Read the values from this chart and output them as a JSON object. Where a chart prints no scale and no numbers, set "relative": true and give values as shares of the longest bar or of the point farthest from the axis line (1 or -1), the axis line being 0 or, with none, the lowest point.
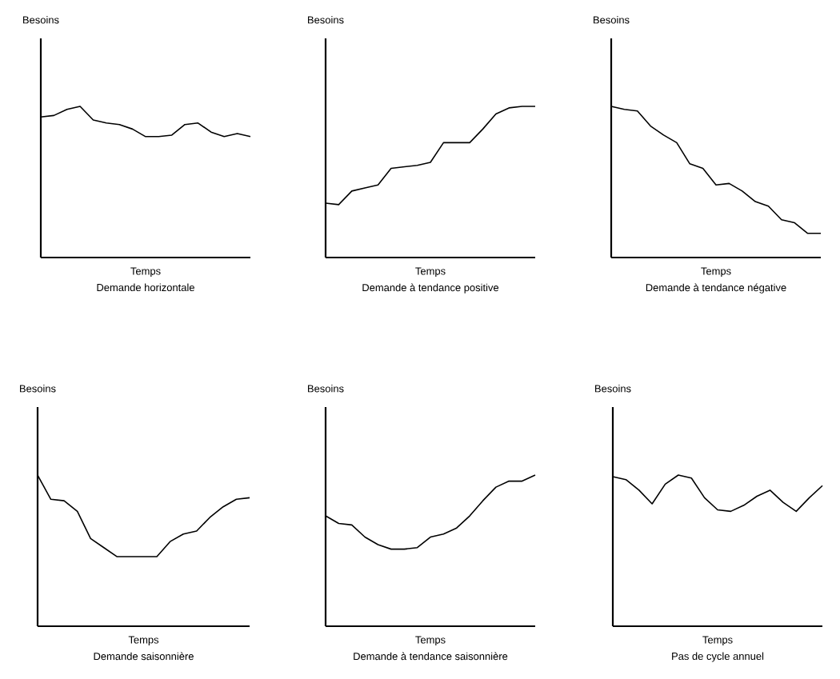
{
  "chart_data": [
    {
      "type": "line",
      "relative": true,
      "title": "Demande horizontale",
      "xlabel": "Temps",
      "ylabel": "Besoins",
      "color": "#000000",
      "categories": [
        null,
        null,
        null,
        null,
        null,
        null,
        null,
        null,
        null,
        null,
        null,
        null,
        null,
        null,
        null,
        null,
        null
      ],
      "values": [
        0.93,
        0.94,
        0.98,
        1,
        0.91,
        0.89,
        0.88,
        0.85,
        0.8,
        0.8,
        0.81,
        0.88,
        0.89,
        0.83,
        0.8,
        0.82,
        0.8
      ]
    },
    {
      "type": "line",
      "relative": true,
      "title": "Demande à tendance positive",
      "xlabel": "Temps",
      "ylabel": "Besoins",
      "color": "#000000",
      "categories": [
        null,
        null,
        null,
        null,
        null,
        null,
        null,
        null,
        null,
        null,
        null,
        null,
        null,
        null,
        null,
        null,
        null
      ],
      "values": [
        0.36,
        0.35,
        0.44,
        0.46,
        0.48,
        0.59,
        0.6,
        0.61,
        0.63,
        0.76,
        0.76,
        0.76,
        0.85,
        0.95,
        0.99,
        1,
        1
      ]
    },
    {
      "type": "line",
      "relative": true,
      "title": "Demande à tendance négative",
      "xlabel": "Temps",
      "ylabel": "Besoins",
      "color": "#000000",
      "categories": [
        null,
        null,
        null,
        null,
        null,
        null,
        null,
        null,
        null,
        null,
        null,
        null,
        null,
        null,
        null,
        null,
        null
      ],
      "values": [
        1,
        0.98,
        0.97,
        0.87,
        0.81,
        0.76,
        0.62,
        0.59,
        0.48,
        0.49,
        0.44,
        0.37,
        0.34,
        0.25,
        0.23,
        0.16,
        0.16
      ]
    },
    {
      "type": "line",
      "relative": true,
      "title": "Demande saisonnière",
      "xlabel": "Temps",
      "ylabel": "Besoins",
      "color": "#000000",
      "categories": [
        null,
        null,
        null,
        null,
        null,
        null,
        null,
        null,
        null,
        null,
        null,
        null,
        null,
        null,
        null,
        null,
        null
      ],
      "values": [
        1,
        0.84,
        0.83,
        0.76,
        0.58,
        0.52,
        0.46,
        0.46,
        0.46,
        0.46,
        0.56,
        0.61,
        0.63,
        0.72,
        0.79,
        0.84,
        0.85
      ]
    },
    {
      "type": "line",
      "relative": true,
      "title": "Demande à tendance saisonnière",
      "xlabel": "Temps",
      "ylabel": "Besoins",
      "color": "#000000",
      "categories": [
        null,
        null,
        null,
        null,
        null,
        null,
        null,
        null,
        null,
        null,
        null,
        null,
        null,
        null,
        null,
        null,
        null
      ],
      "values": [
        0.73,
        0.68,
        0.67,
        0.59,
        0.54,
        0.51,
        0.51,
        0.52,
        0.59,
        0.61,
        0.65,
        0.73,
        0.83,
        0.92,
        0.96,
        0.96,
        1
      ]
    },
    {
      "type": "line",
      "relative": true,
      "title": "Pas de cycle annuel",
      "xlabel": "Temps",
      "ylabel": "Besoins",
      "color": "#000000",
      "categories": [
        null,
        null,
        null,
        null,
        null,
        null,
        null,
        null,
        null,
        null,
        null,
        null,
        null,
        null,
        null,
        null,
        null
      ],
      "values": [
        0.99,
        0.97,
        0.9,
        0.81,
        0.94,
        1,
        0.98,
        0.85,
        0.77,
        0.76,
        0.8,
        0.86,
        0.9,
        0.82,
        0.76,
        0.85,
        0.93
      ]
    }
  ]
}
